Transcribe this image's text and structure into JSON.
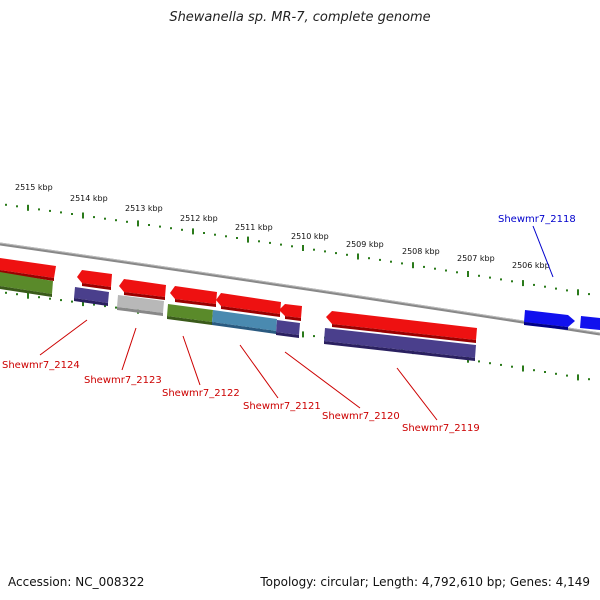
{
  "title": "Shewanella sp. MR-7, complete genome",
  "footer": {
    "accession": "Accession: NC_008322",
    "summary": "Topology: circular; Length: 4,792,610 bp; Genes: 4,149"
  },
  "ruler_labels": [
    "2515 kbp",
    "2514 kbp",
    "2513 kbp",
    "2512 kbp",
    "2511 kbp",
    "2510 kbp",
    "2509 kbp",
    "2508 kbp",
    "2507 kbp",
    "2506 kbp"
  ],
  "gene_labels": [
    {
      "text": "Shewmr7_2124",
      "color": "#cc0000"
    },
    {
      "text": "Shewmr7_2123",
      "color": "#cc0000"
    },
    {
      "text": "Shewmr7_2122",
      "color": "#cc0000"
    },
    {
      "text": "Shewmr7_2121",
      "color": "#cc0000"
    },
    {
      "text": "Shewmr7_2120",
      "color": "#cc0000"
    },
    {
      "text": "Shewmr7_2119",
      "color": "#cc0000"
    },
    {
      "text": "Shewmr7_2118",
      "color": "#0000cc"
    }
  ],
  "colors": {
    "cds": "#ee1111",
    "rna": "#1111ee",
    "cog_purple": "#4a3f8c",
    "cog_green": "#5a8a2a",
    "cog_teal": "#4a8ab0",
    "cog_gray": "#b8b8b8",
    "backbone": "#888888",
    "ruler": "#2a7a1a"
  }
}
